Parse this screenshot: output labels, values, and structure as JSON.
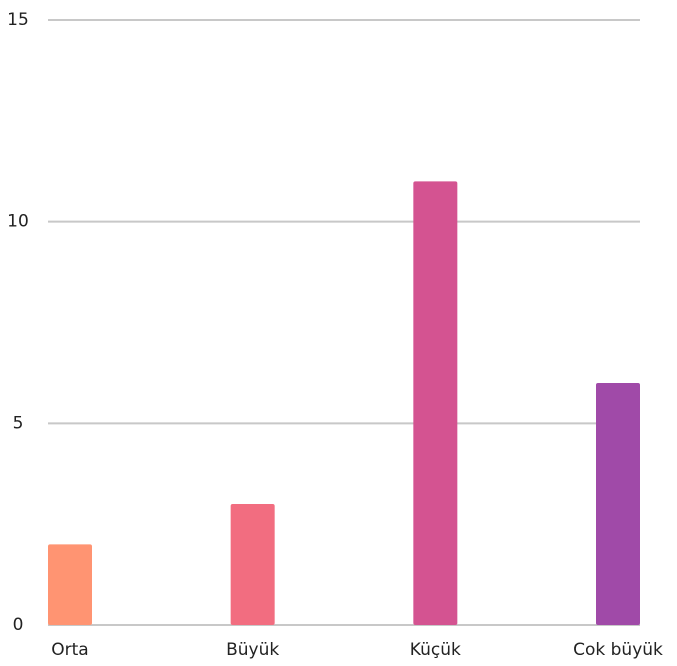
{
  "chart_data": {
    "type": "bar",
    "categories": [
      "Orta",
      "Büyük",
      "Küçük",
      "Cok büyük"
    ],
    "values": [
      2,
      3,
      11,
      6
    ],
    "colors": [
      "#ff9472",
      "#f26d80",
      "#d45391",
      "#a04aa8"
    ],
    "ylim": [
      0,
      15
    ],
    "yticks": [
      0,
      5,
      10,
      15
    ],
    "grid": true
  }
}
